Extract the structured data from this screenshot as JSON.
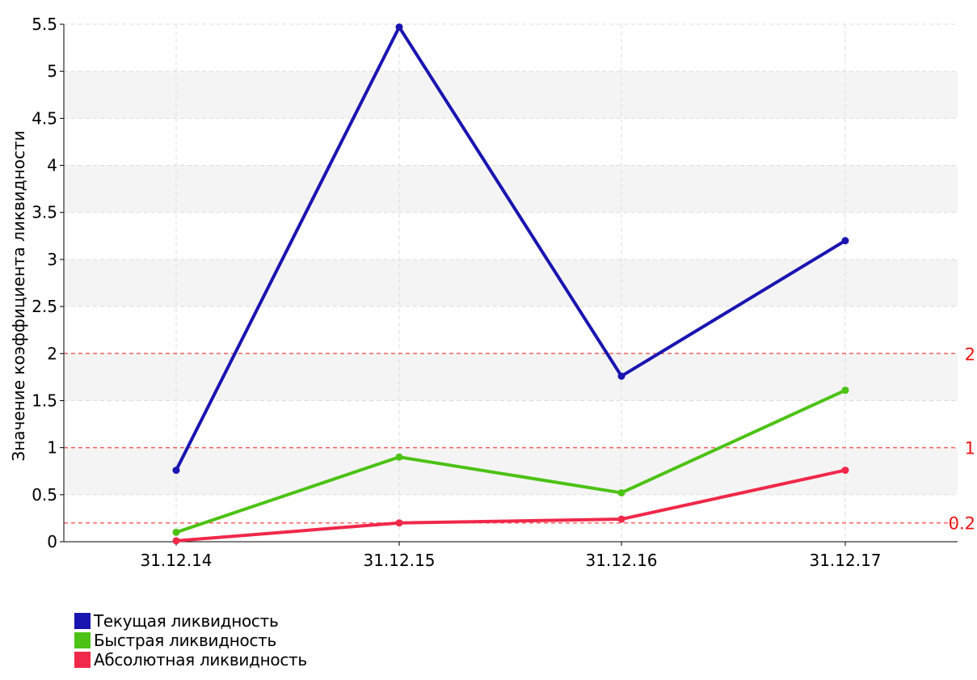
{
  "chart_data": {
    "type": "line",
    "title": "",
    "xlabel": "",
    "ylabel": "Значение коэффициента ликвидности",
    "categories": [
      "31.12.14",
      "31.12.15",
      "31.12.16",
      "31.12.17"
    ],
    "ylim": [
      0,
      5.5
    ],
    "yticks": [
      "0",
      "0.5",
      "1",
      "1.5",
      "2",
      "2.5",
      "3",
      "3.5",
      "4",
      "4.5",
      "5",
      "5.5"
    ],
    "grid": true,
    "legend_position": "bottom-left",
    "series": [
      {
        "name": "Текущая ликвидность",
        "color": "#1a14b0",
        "values": [
          0.76,
          5.47,
          1.76,
          3.2
        ]
      },
      {
        "name": "Быстрая ликвидность",
        "color": "#4cc214",
        "values": [
          0.1,
          0.9,
          0.52,
          1.61
        ]
      },
      {
        "name": "Абсолютная ликвидность",
        "color": "#f0284a",
        "values": [
          0.01,
          0.2,
          0.24,
          0.76
        ]
      }
    ],
    "reference_lines": [
      {
        "value": 2,
        "label": "2",
        "color": "#ff3333"
      },
      {
        "value": 1,
        "label": "1",
        "color": "#ff3333"
      },
      {
        "value": 0.2,
        "label": "0.2",
        "color": "#ff3333"
      }
    ]
  }
}
